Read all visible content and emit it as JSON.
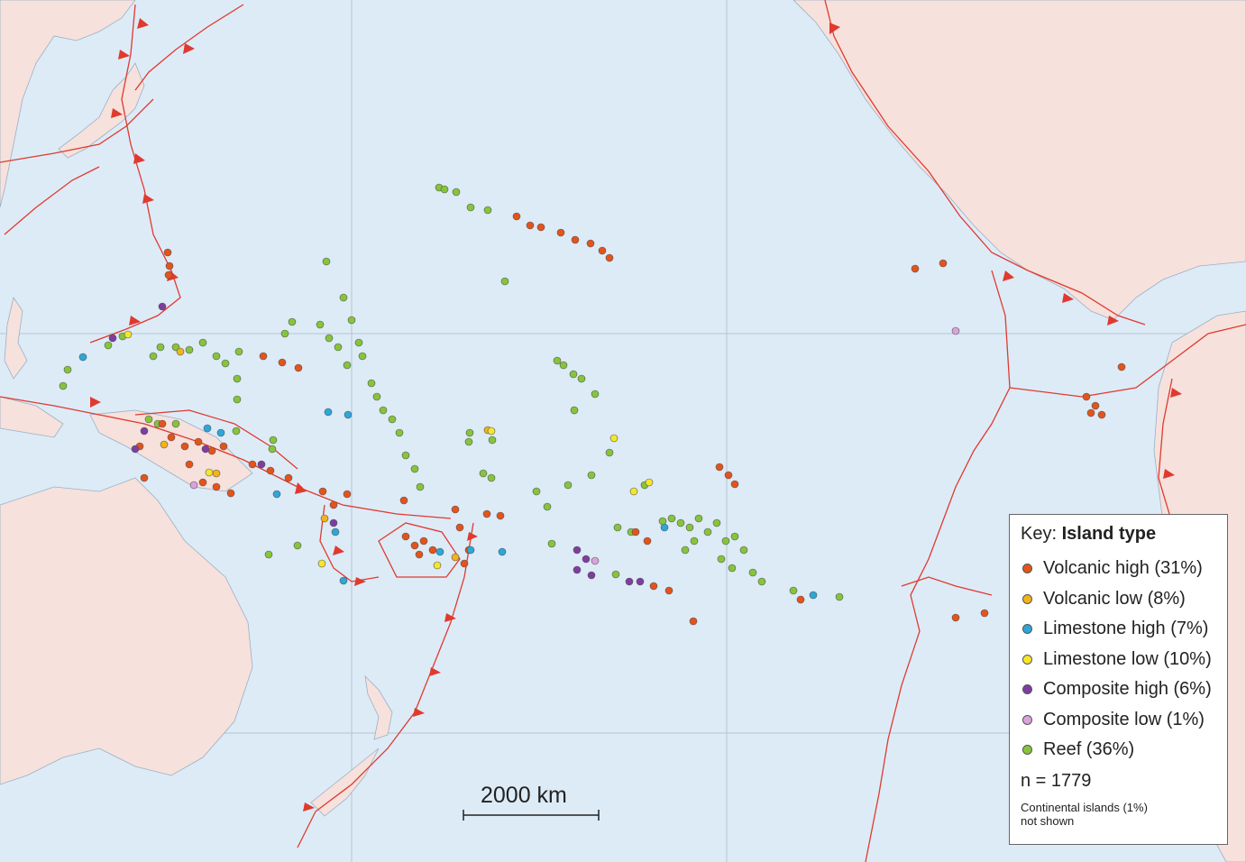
{
  "key": {
    "title_prefix": "Key:",
    "title_bold": "Island type",
    "items": [
      {
        "label": "Volcanic high (31%)",
        "color": "#e4531b"
      },
      {
        "label": "Volcanic low (8%)",
        "color": "#f0b31a"
      },
      {
        "label": "Limestone high (7%)",
        "color": "#2ca7d8"
      },
      {
        "label": "Limestone low (10%)",
        "color": "#f5e62a"
      },
      {
        "label": "Composite high (6%)",
        "color": "#7f3da0"
      },
      {
        "label": "Composite low (1%)",
        "color": "#d9a3dc"
      },
      {
        "label": "Reef (36%)",
        "color": "#86c43b"
      }
    ],
    "n": "n = 1779",
    "note_line1": "Continental islands (1%)",
    "note_line2": "not shown"
  },
  "scale_bar": {
    "label": "2000 km"
  },
  "colors": {
    "ocean": "#ddebf7",
    "land": "#f6e1dc",
    "plate_boundary": "#e03a2e",
    "graticule": "#b8c6d2"
  }
}
